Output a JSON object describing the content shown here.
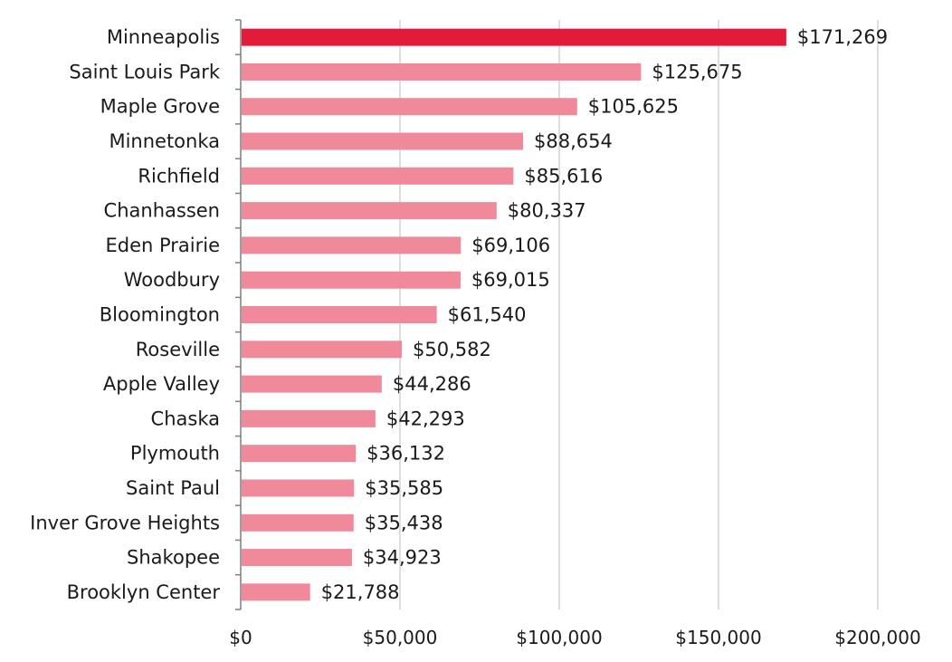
{
  "chart_data": {
    "type": "bar",
    "orientation": "horizontal",
    "categories": [
      "Minneapolis",
      "Saint Louis Park",
      "Maple Grove",
      "Minnetonka",
      "Richfield",
      "Chanhassen",
      "Eden Prairie",
      "Woodbury",
      "Bloomington",
      "Roseville",
      "Apple Valley",
      "Chaska",
      "Plymouth",
      "Saint Paul",
      "Inver Grove Heights",
      "Shakopee",
      "Brooklyn Center"
    ],
    "values": [
      171269,
      125675,
      105625,
      88654,
      85616,
      80337,
      69106,
      69015,
      61540,
      50582,
      44286,
      42293,
      36132,
      35585,
      35438,
      34923,
      21788
    ],
    "value_labels": [
      "$171,269",
      "$125,675",
      "$105,625",
      "$88,654",
      "$85,616",
      "$80,337",
      "$69,106",
      "$69,015",
      "$61,540",
      "$50,582",
      "$44,286",
      "$42,293",
      "$36,132",
      "$35,585",
      "$35,438",
      "$34,923",
      "$21,788"
    ],
    "xlim": [
      0,
      200000
    ],
    "xticks": [
      0,
      50000,
      100000,
      150000,
      200000
    ],
    "xtick_labels": [
      "$0",
      "$50,000",
      "$100,000",
      "$150,000",
      "$200,000"
    ],
    "grid": "vertical",
    "highlight_index": 0,
    "colors": {
      "highlight": "#e31a3a",
      "bar": "#f08a9a",
      "grid": "#d4d4d4",
      "axis": "#7f7f7f"
    }
  }
}
